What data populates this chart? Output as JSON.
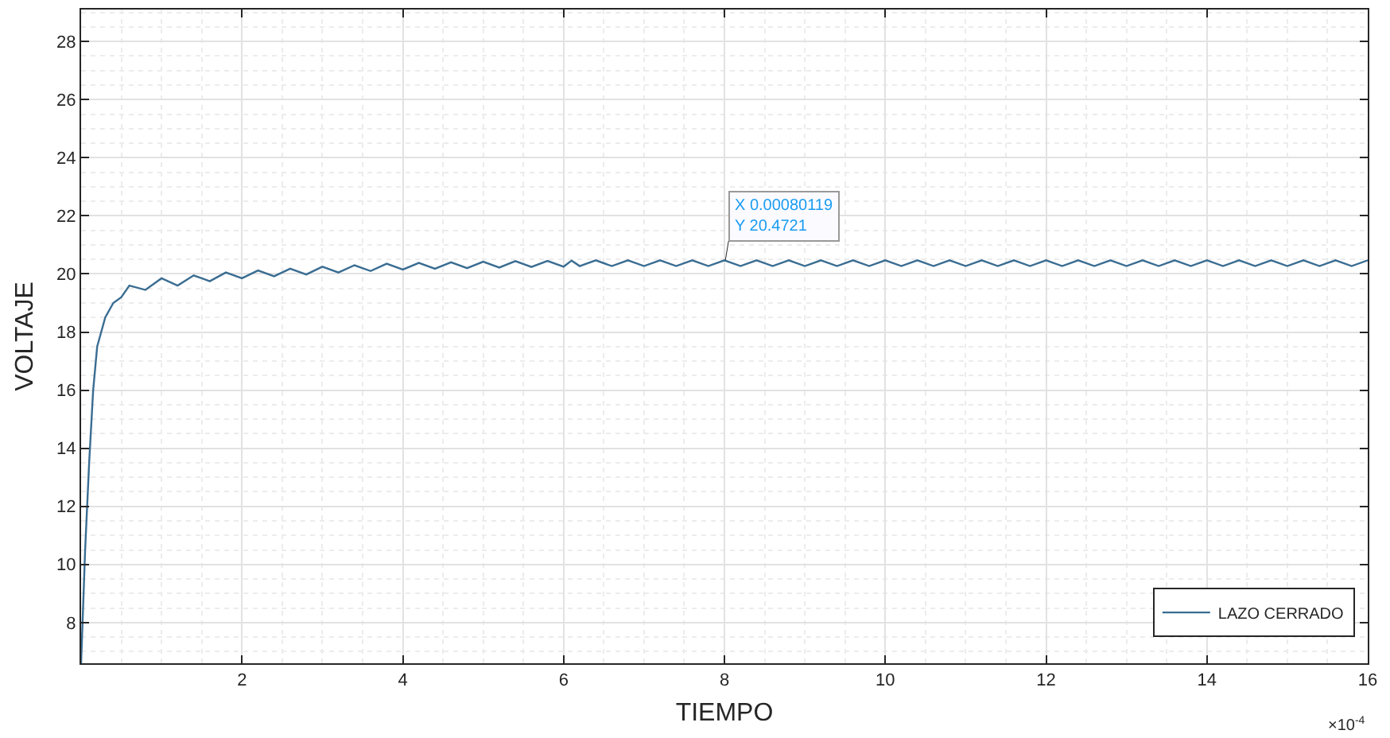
{
  "chart_data": {
    "type": "line",
    "xlabel": "TIEMPO",
    "ylabel": "VOLTAJE",
    "xlim": [
      0,
      16
    ],
    "xticks": [
      2,
      4,
      6,
      8,
      10,
      12,
      14,
      16
    ],
    "ylim": [
      6.6,
      29.1
    ],
    "yticks": [
      8,
      10,
      12,
      14,
      16,
      18,
      20,
      22,
      24,
      26,
      28
    ],
    "grid": true,
    "legend": "bottom right",
    "line_style": "solid",
    "annotations": [
      {
        "text": "X 0.00080119\nY 20.4721",
        "x": 8.0119,
        "y": 20.4721
      },
      "×10$^{-4}$"
    ],
    "series": [
      {
        "name": "LAZO CERRADO",
        "color": "#3a6d92",
        "x": [
          0,
          0.05,
          0.1,
          0.15,
          0.2,
          0.3,
          0.4,
          0.5,
          0.6,
          0.8,
          1.0,
          1.2,
          1.4,
          1.6,
          1.8,
          2.0,
          2.2,
          2.4,
          2.6,
          2.8,
          3.0,
          3.2,
          3.4,
          3.6,
          3.8,
          4.0,
          4.2,
          4.4,
          4.6,
          4.8,
          5.0,
          5.2,
          5.4,
          5.6,
          5.8,
          6.0,
          6.1,
          6.2,
          6.4,
          6.6,
          6.8,
          7.0,
          7.2,
          7.4,
          7.6,
          7.8,
          8.0,
          8.2,
          8.4,
          8.6,
          8.8,
          9.0,
          9.2,
          9.4,
          9.6,
          9.8,
          10.0,
          10.2,
          10.4,
          10.6,
          10.8,
          11.0,
          11.2,
          11.4,
          11.6,
          11.8,
          12.0,
          12.2,
          12.4,
          12.6,
          12.8,
          13.0,
          13.2,
          13.4,
          13.6,
          13.8,
          14.0,
          14.2,
          14.4,
          14.6,
          14.8,
          15.0,
          15.2,
          15.4,
          15.6,
          15.8,
          16.0
        ],
        "values": [
          6.6,
          10.5,
          13.5,
          16,
          17.5,
          18.5,
          19.0,
          19.2,
          19.6,
          19.45,
          19.85,
          19.6,
          19.95,
          19.75,
          20.05,
          19.85,
          20.12,
          19.92,
          20.18,
          19.98,
          20.25,
          20.05,
          20.3,
          20.1,
          20.35,
          20.15,
          20.38,
          20.18,
          20.4,
          20.2,
          20.42,
          20.22,
          20.44,
          20.24,
          20.45,
          20.25,
          20.46,
          20.27,
          20.47,
          20.27,
          20.47,
          20.27,
          20.47,
          20.27,
          20.47,
          20.27,
          20.47,
          20.27,
          20.47,
          20.27,
          20.47,
          20.27,
          20.47,
          20.27,
          20.47,
          20.27,
          20.47,
          20.27,
          20.47,
          20.27,
          20.47,
          20.27,
          20.47,
          20.27,
          20.47,
          20.27,
          20.47,
          20.27,
          20.47,
          20.27,
          20.47,
          20.27,
          20.47,
          20.27,
          20.47,
          20.27,
          20.47,
          20.27,
          20.47,
          20.27,
          20.47,
          20.27,
          20.47,
          20.27,
          20.47,
          20.27,
          20.47
        ]
      }
    ]
  }
}
